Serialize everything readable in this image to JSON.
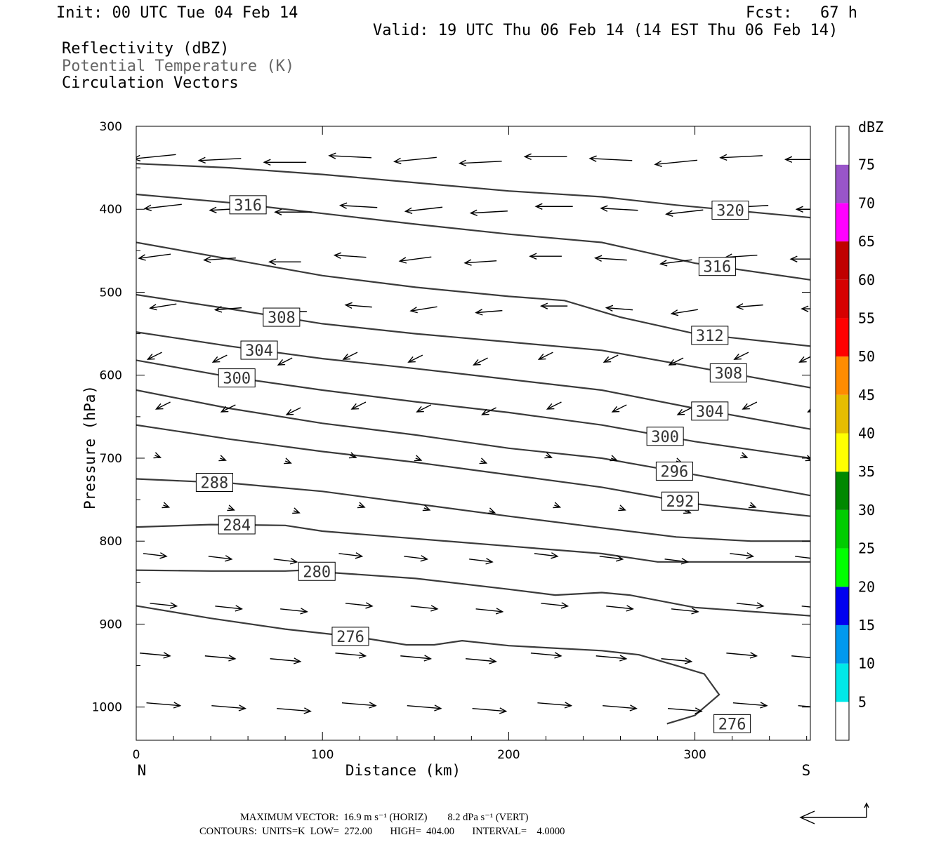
{
  "header": {
    "init": "Init: 00 UTC Tue 04 Feb 14",
    "fcst": "Fcst:   67 h",
    "valid": "Valid: 19 UTC Thu 06 Feb 14 (14 EST Thu 06 Feb 14)",
    "field1": "Reflectivity (dBZ)",
    "field2": "Potential Temperature (K)",
    "field3": "Circulation Vectors"
  },
  "footer": {
    "max_vector": "MAXIMUM VECTOR:  16.9 m s⁻¹ (HORIZ)        8.2 dPa s⁻¹ (VERT)",
    "contours": "CONTOURS:  UNITS=K  LOW=  272.00       HIGH=  404.00       INTERVAL=    4.0000"
  },
  "colors": {
    "contour": "#3a3a3a",
    "vector": "#000000"
  },
  "chart_data": {
    "type": "cross-section",
    "xlabel": "Distance (km)",
    "ylabel": "Pressure (hPa)",
    "x_left_label": "N",
    "x_right_label": "S",
    "xlim": [
      0,
      362
    ],
    "ylim": [
      1040,
      300
    ],
    "xticks": [
      0,
      100,
      200,
      300
    ],
    "yticks": [
      300,
      400,
      500,
      600,
      700,
      800,
      900,
      1000
    ],
    "colorbar": {
      "title": "dBZ",
      "levels": [
        5,
        10,
        15,
        20,
        25,
        30,
        35,
        40,
        45,
        50,
        55,
        60,
        65,
        70,
        75
      ],
      "colors": [
        "#ffffff",
        "#00e8e8",
        "#0099ee",
        "#0000f0",
        "#00ff00",
        "#00cc00",
        "#008800",
        "#ffff00",
        "#e6bd00",
        "#ff8c00",
        "#ff0000",
        "#d60000",
        "#c00000",
        "#ff00ff",
        "#9955c9",
        "#ffffff"
      ]
    },
    "isentropes": [
      {
        "value": 276,
        "label_pos": [
          116,
          842
        ],
        "points": [
          [
            0,
            878
          ],
          [
            40,
            893
          ],
          [
            80,
            906
          ],
          [
            120,
            916
          ],
          [
            145,
            925
          ],
          [
            160,
            925
          ],
          [
            175,
            920
          ],
          [
            200,
            926
          ],
          [
            250,
            932
          ],
          [
            270,
            937
          ],
          [
            290,
            950
          ],
          [
            305,
            960
          ],
          [
            313,
            985
          ],
          [
            300,
            1010
          ],
          [
            285,
            1020
          ]
        ]
      },
      {
        "value": 280,
        "label_pos": [
          300,
          1147
        ],
        "points": [
          [
            0,
            835
          ],
          [
            40,
            836
          ],
          [
            80,
            836
          ],
          [
            90,
            835
          ],
          [
            105,
            838
          ],
          [
            150,
            845
          ],
          [
            200,
            858
          ],
          [
            225,
            865
          ],
          [
            250,
            862
          ],
          [
            265,
            865
          ],
          [
            300,
            880
          ],
          [
            362,
            890
          ]
        ]
      },
      {
        "value": 284,
        "label_pos": [
          120,
          975
        ],
        "points": [
          [
            0,
            783
          ],
          [
            40,
            780
          ],
          [
            80,
            781
          ],
          [
            100,
            788
          ],
          [
            150,
            797
          ],
          [
            200,
            806
          ],
          [
            250,
            815
          ],
          [
            280,
            825
          ],
          [
            320,
            825
          ],
          [
            362,
            825
          ]
        ]
      },
      {
        "value": 288,
        "label_pos": [
          50,
          680
        ],
        "points": [
          [
            0,
            725
          ],
          [
            50,
            730
          ],
          [
            100,
            740
          ],
          [
            150,
            755
          ],
          [
            200,
            770
          ],
          [
            250,
            784
          ],
          [
            290,
            795
          ],
          [
            330,
            800
          ],
          [
            362,
            800
          ]
        ]
      },
      {
        "value": 292,
        "label_pos": [
          60,
          580
        ],
        "points": [
          [
            0,
            660
          ],
          [
            50,
            677
          ],
          [
            100,
            692
          ],
          [
            150,
            705
          ],
          [
            200,
            720
          ],
          [
            250,
            735
          ],
          [
            300,
            755
          ],
          [
            362,
            770
          ]
        ]
      },
      {
        "value": 296,
        "label_pos": [
          50,
          560
        ],
        "points": [
          [
            0,
            618
          ],
          [
            50,
            640
          ],
          [
            100,
            658
          ],
          [
            150,
            672
          ],
          [
            200,
            688
          ],
          [
            250,
            700
          ],
          [
            300,
            720
          ],
          [
            362,
            745
          ]
        ]
      },
      {
        "value": 300,
        "label_pos": [
          50,
          500
        ],
        "points": [
          [
            0,
            582
          ],
          [
            50,
            602
          ],
          [
            100,
            618
          ],
          [
            150,
            632
          ],
          [
            200,
            645
          ],
          [
            250,
            660
          ],
          [
            300,
            680
          ],
          [
            362,
            700
          ]
        ]
      },
      {
        "value": 304,
        "label_pos": [
          60,
          440
        ],
        "points": [
          [
            0,
            548
          ],
          [
            50,
            565
          ],
          [
            100,
            580
          ],
          [
            150,
            592
          ],
          [
            200,
            605
          ],
          [
            250,
            618
          ],
          [
            300,
            640
          ],
          [
            362,
            665
          ]
        ]
      },
      {
        "value": 308,
        "label_pos": [
          80,
          380
        ],
        "points": [
          [
            0,
            503
          ],
          [
            50,
            520
          ],
          [
            100,
            538
          ],
          [
            150,
            550
          ],
          [
            200,
            560
          ],
          [
            250,
            570
          ],
          [
            300,
            590
          ],
          [
            362,
            615
          ]
        ]
      },
      {
        "value": 312,
        "label_pos": [
          90,
          300
        ],
        "points": [
          [
            0,
            440
          ],
          [
            50,
            460
          ],
          [
            100,
            480
          ],
          [
            150,
            494
          ],
          [
            200,
            505
          ],
          [
            230,
            510
          ],
          [
            260,
            530
          ],
          [
            300,
            550
          ],
          [
            362,
            565
          ]
        ]
      },
      {
        "value": 316,
        "label_pos": [
          60,
          230
        ],
        "points": [
          [
            0,
            382
          ],
          [
            50,
            392
          ],
          [
            100,
            405
          ],
          [
            150,
            418
          ],
          [
            200,
            430
          ],
          [
            250,
            440
          ],
          [
            280,
            455
          ],
          [
            300,
            465
          ],
          [
            362,
            485
          ]
        ]
      },
      {
        "value": 320,
        "label_pos": [
          320,
          228
        ],
        "points": [
          [
            0,
            345
          ],
          [
            50,
            350
          ],
          [
            100,
            358
          ],
          [
            150,
            368
          ],
          [
            200,
            378
          ],
          [
            250,
            385
          ],
          [
            290,
            395
          ],
          [
            362,
            410
          ]
        ]
      }
    ]
  }
}
